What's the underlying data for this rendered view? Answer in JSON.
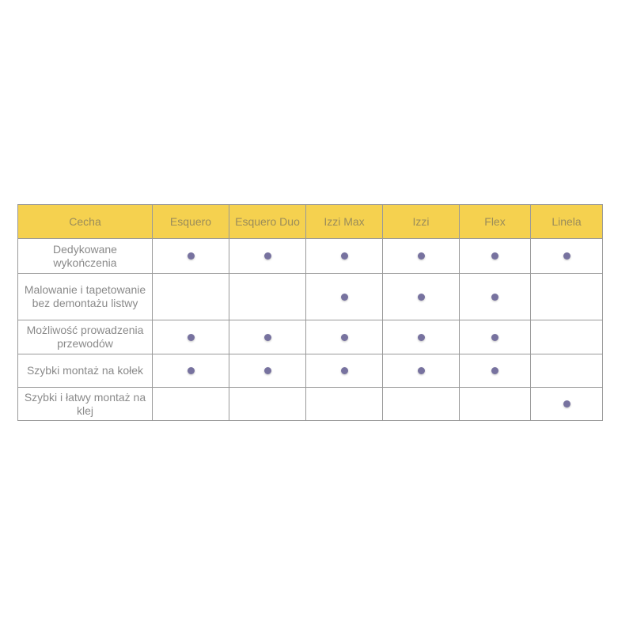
{
  "table": {
    "headers": [
      "Cecha",
      "Esquero",
      "Esquero Duo",
      "Izzi Max",
      "Izzi",
      "Flex",
      "Linela"
    ],
    "rows": [
      {
        "feature": "Dedykowane wykończenia",
        "marks": [
          true,
          true,
          true,
          true,
          true,
          true
        ]
      },
      {
        "feature": "Malowanie i tapetowanie bez demontażu listwy",
        "marks": [
          false,
          false,
          true,
          true,
          true,
          false
        ]
      },
      {
        "feature": "Możliwość prowadzenia przewodów",
        "marks": [
          true,
          true,
          true,
          true,
          true,
          false
        ]
      },
      {
        "feature": "Szybki montaż na kołek",
        "marks": [
          true,
          true,
          true,
          true,
          true,
          false
        ]
      },
      {
        "feature": "Szybki i łatwy montaż na klej",
        "marks": [
          false,
          false,
          false,
          false,
          false,
          true
        ]
      }
    ]
  },
  "colors": {
    "header": "#f5d14f",
    "dot": "#77729f"
  }
}
